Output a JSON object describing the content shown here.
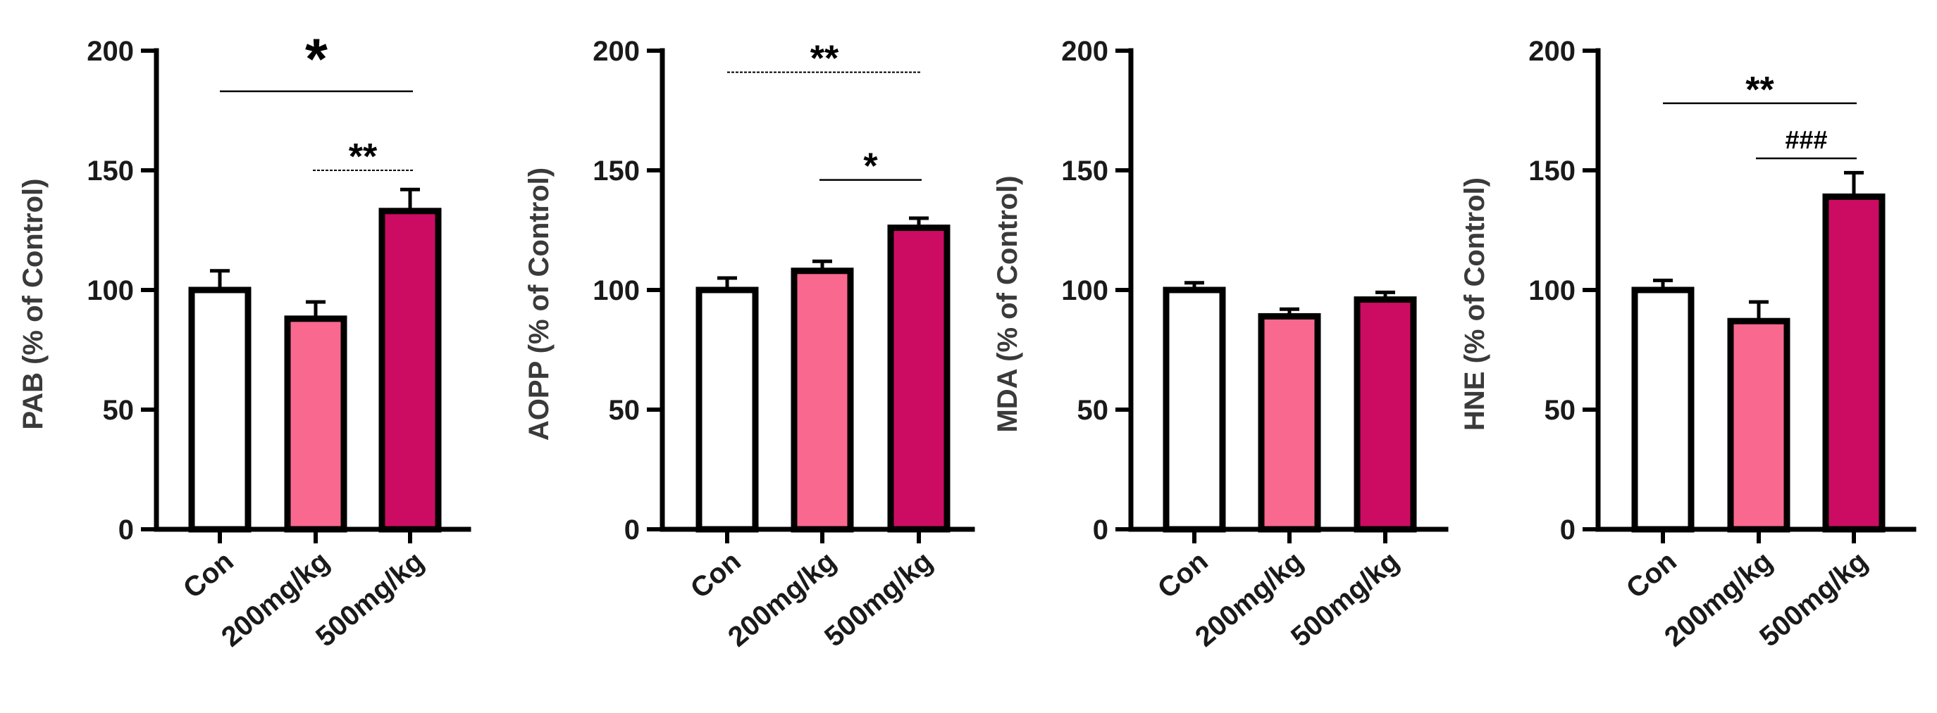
{
  "colors": {
    "Con": "#ffffff",
    "200mg/kg": "#f8688f",
    "500mg/kg": "#cc0c62"
  },
  "chart_data": [
    {
      "type": "bar",
      "ylabel": "PAB (% of Control)",
      "categories": [
        "Con",
        "200mg/kg",
        "500mg/kg"
      ],
      "values": [
        100,
        88,
        133
      ],
      "errors": [
        8,
        7,
        9
      ],
      "ylim": [
        0,
        200
      ],
      "yticks": [
        0,
        50,
        100,
        150,
        200
      ],
      "tick_labels": [
        "0",
        "50",
        "100",
        "150",
        "200"
      ],
      "annotations": [
        {
          "from": 0,
          "to": 2,
          "y": 183,
          "text": "*",
          "style": "solid",
          "big": true
        },
        {
          "from": 1,
          "to": 2,
          "y": 150,
          "text": "**",
          "style": "dashed",
          "big": false
        }
      ]
    },
    {
      "type": "bar",
      "ylabel": "AOPP (% of Control)",
      "categories": [
        "Con",
        "200mg/kg",
        "500mg/kg"
      ],
      "values": [
        100,
        108,
        126
      ],
      "errors": [
        5,
        4,
        4
      ],
      "ylim": [
        0,
        200
      ],
      "yticks": [
        0,
        50,
        100,
        150,
        200
      ],
      "tick_labels": [
        "0",
        "50",
        "100",
        "150",
        "200"
      ],
      "annotations": [
        {
          "from": 0,
          "to": 2,
          "y": 191,
          "text": "**",
          "style": "dashed",
          "big": false
        },
        {
          "from": 1,
          "to": 2,
          "y": 146,
          "text": "*",
          "style": "solid",
          "big": false
        }
      ]
    },
    {
      "type": "bar",
      "ylabel": "MDA (% of Control)",
      "categories": [
        "Con",
        "200mg/kg",
        "500mg/kg"
      ],
      "values": [
        100,
        89,
        96
      ],
      "errors": [
        3,
        3,
        3
      ],
      "ylim": [
        0,
        200
      ],
      "yticks": [
        0,
        50,
        100,
        150,
        200
      ],
      "tick_labels": [
        "0",
        "50",
        "100",
        "150",
        "200"
      ],
      "annotations": []
    },
    {
      "type": "bar",
      "ylabel": "HNE (% of Control)",
      "categories": [
        "Con",
        "200mg/kg",
        "500mg/kg"
      ],
      "values": [
        100,
        87,
        139
      ],
      "errors": [
        4,
        8,
        10
      ],
      "ylim": [
        0,
        200
      ],
      "yticks": [
        0,
        50,
        100,
        150,
        200
      ],
      "tick_labels": [
        "0",
        "50",
        "100",
        "150",
        "200"
      ],
      "annotations": [
        {
          "from": 0,
          "to": 2,
          "y": 178,
          "text": "**",
          "style": "solid",
          "big": false
        },
        {
          "from": 1,
          "to": 2,
          "y": 155,
          "text": "###",
          "style": "solid",
          "big": false
        }
      ]
    }
  ]
}
